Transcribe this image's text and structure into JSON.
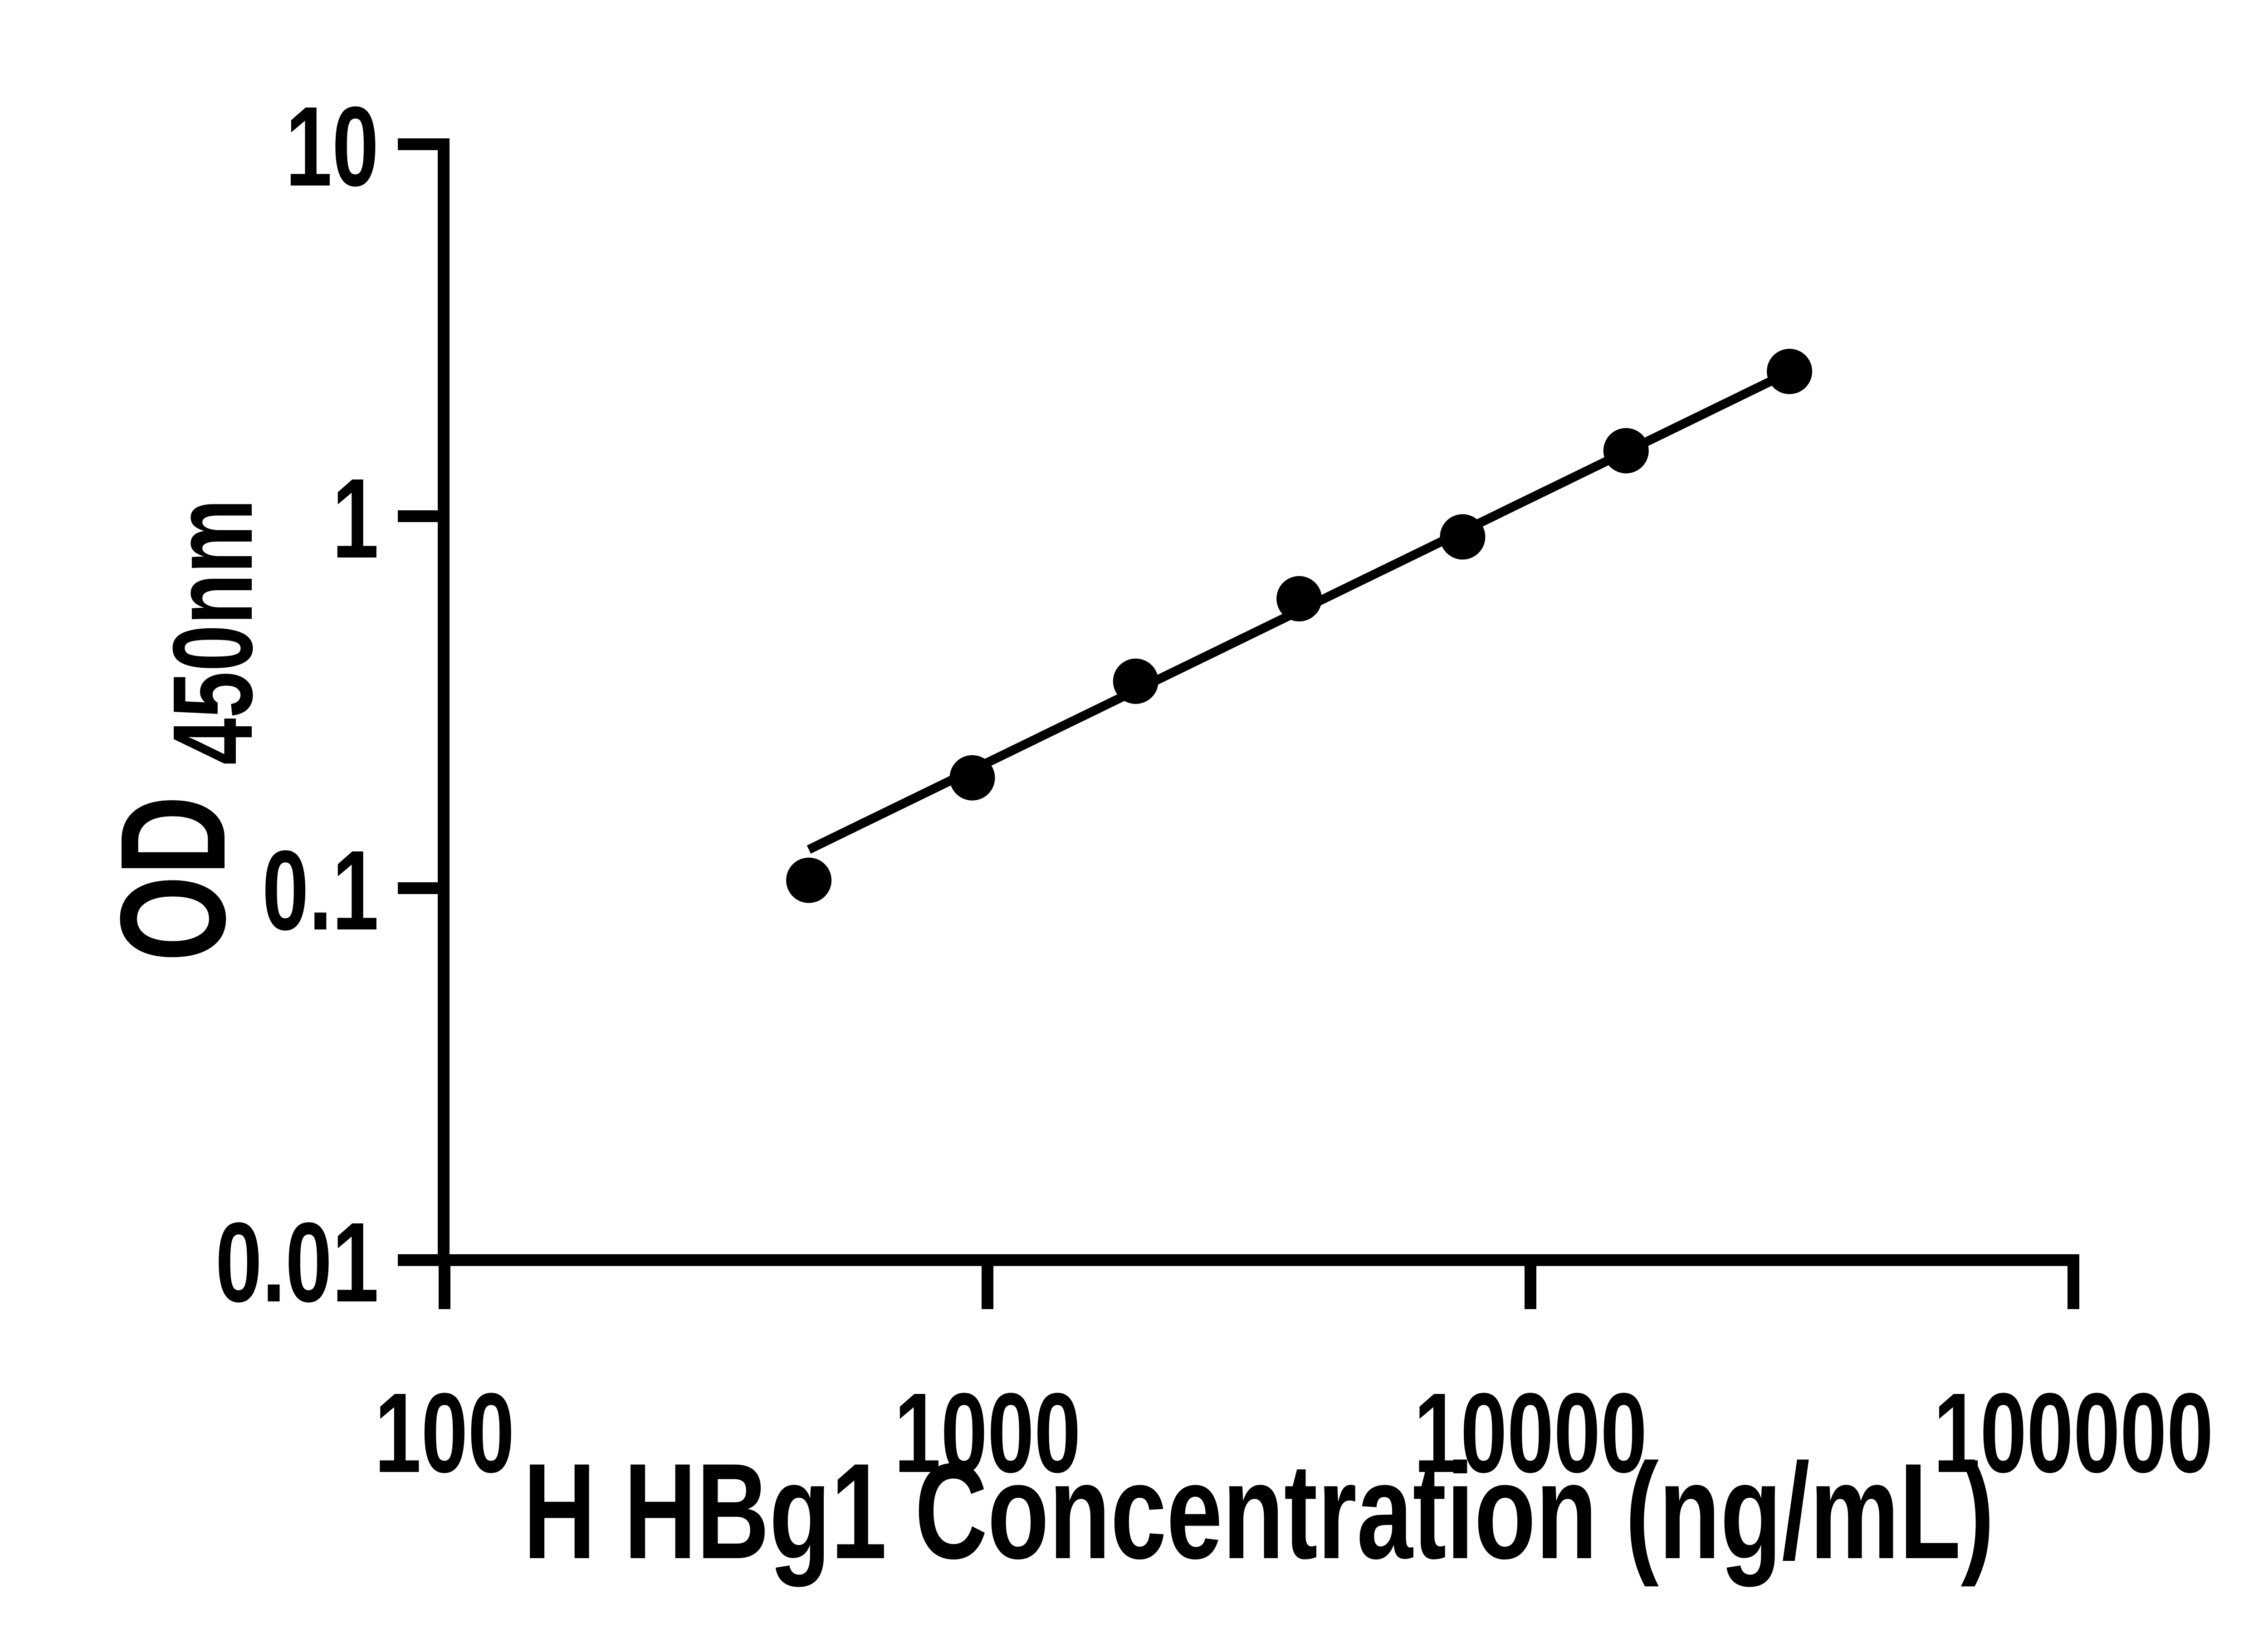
{
  "page": {
    "background_color": "#ffffff",
    "foreground_color": "#000000"
  },
  "chart_data": {
    "type": "scatter",
    "title": "",
    "xlabel": "H HBg1 Concentration (ng/mL)",
    "ylabel": "OD450nm",
    "ylabel_main": "OD",
    "ylabel_sub": "450nm",
    "x_scale": "log",
    "y_scale": "log",
    "xlim": [
      100,
      100000
    ],
    "ylim": [
      0.01,
      10
    ],
    "x_tick_values": [
      100,
      1000,
      10000,
      100000
    ],
    "x_tick_labels": [
      "100",
      "1000",
      "10000",
      "100000"
    ],
    "y_tick_values": [
      10,
      1,
      0.1,
      0.01
    ],
    "y_tick_labels": [
      "10",
      "1",
      "0.1",
      "0.01"
    ],
    "grid": false,
    "legend": "none",
    "series": [
      {
        "x": [
          468.75,
          937.5,
          1875,
          3750,
          7500,
          15000,
          30000
        ],
        "od": [
          0.105,
          0.198,
          0.36,
          0.6,
          0.88,
          1.5,
          2.45
        ]
      }
    ],
    "trend_line": {
      "x": [
        468.75,
        30000
      ],
      "od": [
        0.127,
        2.44
      ]
    },
    "marker": {
      "shape": "circle",
      "color": "#000000"
    },
    "line_color": "#000000",
    "axis_color": "#000000"
  }
}
